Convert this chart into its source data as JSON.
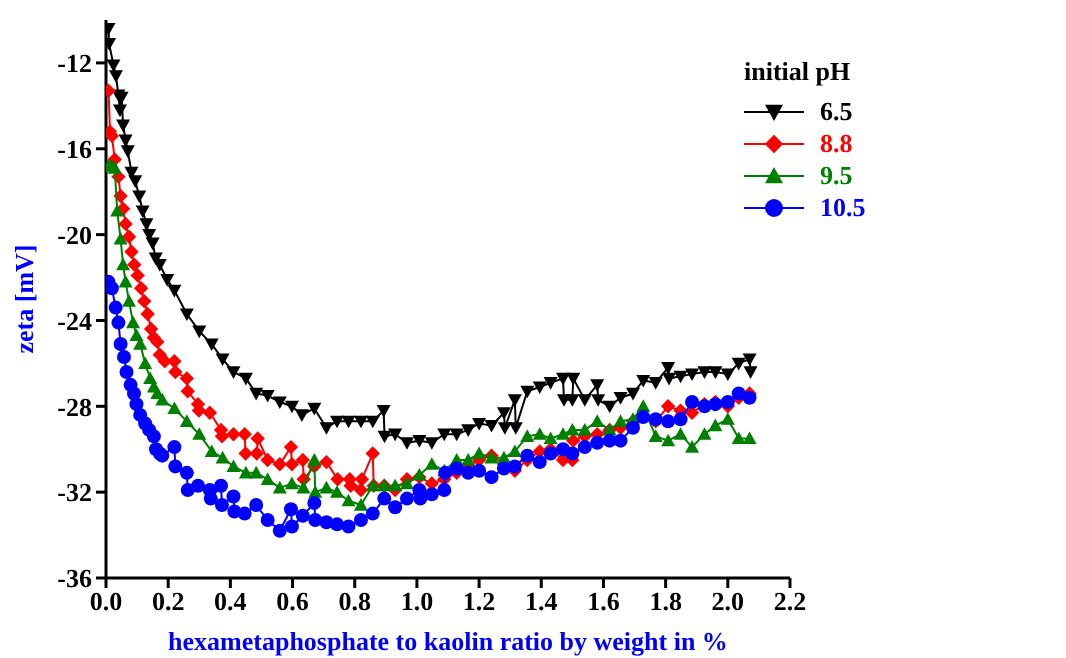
{
  "chart_data": {
    "type": "line",
    "xlabel": "hexametaphosphate to kaolin ratio by weight in %",
    "ylabel": "zeta [mV]",
    "legend_title": "initial pH",
    "legend": "top right",
    "grid": false,
    "xlim": [
      0,
      2.2
    ],
    "ylim": [
      -36,
      -10
    ],
    "xticks": [
      {
        "value": 0,
        "label": "0.0"
      },
      {
        "value": 0.2,
        "label": "0.2"
      },
      {
        "value": 0.4,
        "label": "0.4"
      },
      {
        "value": 0.6,
        "label": "0.6"
      },
      {
        "value": 0.8,
        "label": "0.8"
      },
      {
        "value": 1,
        "label": "1.0"
      },
      {
        "value": 1.2,
        "label": "1.2"
      },
      {
        "value": 1.4,
        "label": "1.4"
      },
      {
        "value": 1.6,
        "label": "1.6"
      },
      {
        "value": 1.8,
        "label": "1.8"
      },
      {
        "value": 2,
        "label": "2.0"
      },
      {
        "value": 2.2,
        "label": "2.2"
      }
    ],
    "yticks": [
      -36,
      -32,
      -28,
      -24,
      -20,
      -16,
      -12
    ],
    "series": [
      {
        "name": "6.5",
        "color": "#000000",
        "marker": "triangle-down",
        "x": [
          0.008,
          0.01,
          0.024,
          0.032,
          0.04,
          0.045,
          0.05,
          0.055,
          0.063,
          0.07,
          0.082,
          0.094,
          0.107,
          0.118,
          0.13,
          0.139,
          0.15,
          0.16,
          0.173,
          0.197,
          0.22,
          0.26,
          0.3,
          0.34,
          0.375,
          0.41,
          0.45,
          0.483,
          0.52,
          0.559,
          0.598,
          0.63,
          0.67,
          0.709,
          0.743,
          0.78,
          0.82,
          0.858,
          0.893,
          0.896,
          0.93,
          0.968,
          1.008,
          1.048,
          1.088,
          1.128,
          1.165,
          1.2,
          1.24,
          1.28,
          1.283,
          1.315,
          1.318,
          1.355,
          1.395,
          1.43,
          1.47,
          1.473,
          1.5,
          1.503,
          1.54,
          1.58,
          1.583,
          1.62,
          1.655,
          1.695,
          1.728,
          1.768,
          1.808,
          1.811,
          1.848,
          1.885,
          1.925,
          1.96,
          2.0,
          2.035,
          2.07,
          2.073
        ],
        "values": [
          -10.4,
          -11.1,
          -12.1,
          -12.6,
          -13.5,
          -14.2,
          -13.6,
          -14.9,
          -15.6,
          -16.1,
          -17.1,
          -17.5,
          -18.2,
          -18.9,
          -19.5,
          -20.0,
          -20.4,
          -21.1,
          -21.4,
          -22.1,
          -22.6,
          -23.7,
          -24.5,
          -25.1,
          -25.8,
          -26.4,
          -26.7,
          -27.4,
          -27.5,
          -27.8,
          -28.0,
          -28.4,
          -28.1,
          -29.0,
          -28.7,
          -28.7,
          -28.7,
          -28.7,
          -28.2,
          -29.4,
          -29.3,
          -29.7,
          -29.6,
          -29.7,
          -29.3,
          -29.3,
          -29.1,
          -28.8,
          -28.9,
          -28.3,
          -29.0,
          -27.7,
          -29.0,
          -27.3,
          -27.1,
          -26.9,
          -26.7,
          -27.7,
          -27.7,
          -26.7,
          -27.7,
          -27.0,
          -27.7,
          -28.0,
          -27.6,
          -27.4,
          -26.8,
          -26.9,
          -26.2,
          -26.7,
          -26.6,
          -26.5,
          -26.4,
          -26.4,
          -26.5,
          -26.0,
          -25.8,
          -26.4
        ]
      },
      {
        "name": "8.8",
        "color": "#ff0000",
        "marker": "diamond",
        "x": [
          0.008,
          0.013,
          0.019,
          0.028,
          0.04,
          0.047,
          0.055,
          0.063,
          0.074,
          0.082,
          0.091,
          0.102,
          0.113,
          0.123,
          0.134,
          0.145,
          0.154,
          0.165,
          0.173,
          0.189,
          0.22,
          0.223,
          0.26,
          0.263,
          0.296,
          0.299,
          0.334,
          0.37,
          0.373,
          0.41,
          0.446,
          0.449,
          0.485,
          0.488,
          0.52,
          0.559,
          0.595,
          0.598,
          0.633,
          0.636,
          0.67,
          0.709,
          0.745,
          0.784,
          0.787,
          0.82,
          0.823,
          0.858,
          0.861,
          0.895,
          0.93,
          0.968,
          1.008,
          1.048,
          1.088,
          1.128,
          1.165,
          1.2,
          1.24,
          1.28,
          1.315,
          1.355,
          1.395,
          1.43,
          1.47,
          1.5,
          1.503,
          1.54,
          1.58,
          1.62,
          1.655,
          1.695,
          1.728,
          1.768,
          1.808,
          1.848,
          1.885,
          1.925,
          1.96,
          2.0,
          2.035,
          2.07
        ],
        "values": [
          -13.3,
          -15.2,
          -15.4,
          -16.5,
          -17.3,
          -18.2,
          -18.8,
          -19.5,
          -20.1,
          -20.8,
          -21.4,
          -21.9,
          -22.5,
          -23.1,
          -23.7,
          -24.4,
          -24.8,
          -25.0,
          -25.6,
          -25.9,
          -25.9,
          -26.4,
          -26.7,
          -27.3,
          -27.9,
          -28.2,
          -28.3,
          -29.1,
          -29.4,
          -29.3,
          -29.3,
          -30.2,
          -30.2,
          -29.5,
          -30.5,
          -30.7,
          -29.9,
          -30.7,
          -30.5,
          -31.4,
          -30.8,
          -30.6,
          -31.4,
          -31.4,
          -31.7,
          -31.9,
          -31.4,
          -30.2,
          -31.7,
          -31.7,
          -31.9,
          -31.4,
          -31.3,
          -31.6,
          -31.4,
          -31.1,
          -30.8,
          -30.5,
          -30.3,
          -30.7,
          -31.0,
          -30.5,
          -30.1,
          -30.0,
          -30.5,
          -30.5,
          -29.6,
          -29.4,
          -29.3,
          -29.1,
          -29.0,
          -28.7,
          -28.5,
          -28.7,
          -28.0,
          -28.2,
          -28.3,
          -27.9,
          -27.8,
          -28.0,
          -27.6,
          -27.4
        ]
      },
      {
        "name": "9.5",
        "color": "#008000",
        "marker": "triangle",
        "x": [
          0.008,
          0.019,
          0.028,
          0.036,
          0.047,
          0.055,
          0.063,
          0.074,
          0.087,
          0.098,
          0.11,
          0.126,
          0.142,
          0.154,
          0.165,
          0.181,
          0.22,
          0.26,
          0.3,
          0.34,
          0.375,
          0.41,
          0.45,
          0.483,
          0.52,
          0.559,
          0.598,
          0.635,
          0.67,
          0.673,
          0.709,
          0.743,
          0.78,
          0.82,
          0.858,
          0.895,
          0.93,
          0.968,
          1.008,
          1.048,
          1.088,
          1.128,
          1.165,
          1.2,
          1.24,
          1.28,
          1.315,
          1.355,
          1.395,
          1.43,
          1.47,
          1.5,
          1.54,
          1.58,
          1.62,
          1.655,
          1.695,
          1.728,
          1.768,
          1.808,
          1.848,
          1.885,
          1.925,
          1.96,
          2.0,
          2.035,
          2.07
        ],
        "values": [
          -16.8,
          -16.8,
          -16.9,
          -18.9,
          -20.2,
          -21.4,
          -22.2,
          -23.1,
          -24.1,
          -24.7,
          -25.1,
          -26.0,
          -26.7,
          -27.1,
          -27.4,
          -27.7,
          -28.1,
          -28.7,
          -29.3,
          -30.1,
          -30.4,
          -30.8,
          -31.1,
          -31.1,
          -31.4,
          -31.8,
          -31.6,
          -31.8,
          -30.5,
          -32.0,
          -31.8,
          -32.0,
          -32.4,
          -32.6,
          -31.7,
          -31.7,
          -31.7,
          -31.6,
          -31.2,
          -30.7,
          -31.0,
          -30.5,
          -30.5,
          -30.2,
          -30.4,
          -30.4,
          -30.1,
          -29.4,
          -29.3,
          -29.5,
          -29.3,
          -29.1,
          -29.1,
          -28.7,
          -29.1,
          -28.7,
          -28.6,
          -28.0,
          -29.4,
          -29.6,
          -29.3,
          -29.9,
          -29.3,
          -28.9,
          -28.6,
          -29.5,
          -29.5
        ]
      },
      {
        "name": "10.5",
        "color": "#0000ff",
        "marker": "circle",
        "x": [
          0.008,
          0.019,
          0.031,
          0.04,
          0.047,
          0.058,
          0.066,
          0.079,
          0.09,
          0.098,
          0.11,
          0.126,
          0.139,
          0.154,
          0.161,
          0.173,
          0.181,
          0.22,
          0.223,
          0.26,
          0.263,
          0.296,
          0.334,
          0.337,
          0.37,
          0.373,
          0.41,
          0.413,
          0.446,
          0.483,
          0.52,
          0.559,
          0.595,
          0.598,
          0.633,
          0.67,
          0.673,
          0.709,
          0.743,
          0.78,
          0.82,
          0.858,
          0.895,
          0.93,
          0.968,
          1.008,
          1.011,
          1.048,
          1.088,
          1.091,
          1.128,
          1.165,
          1.2,
          1.24,
          1.28,
          1.315,
          1.355,
          1.395,
          1.43,
          1.47,
          1.5,
          1.54,
          1.58,
          1.62,
          1.655,
          1.695,
          1.728,
          1.768,
          1.808,
          1.848,
          1.885,
          1.925,
          1.96,
          2.0,
          2.035,
          2.07
        ],
        "values": [
          -22.2,
          -22.5,
          -23.4,
          -24.1,
          -25.1,
          -25.7,
          -26.4,
          -27.0,
          -27.4,
          -27.9,
          -28.4,
          -28.8,
          -29.1,
          -29.4,
          -30.0,
          -30.2,
          -30.3,
          -29.9,
          -30.8,
          -31.1,
          -31.9,
          -31.7,
          -31.9,
          -32.3,
          -31.7,
          -32.6,
          -32.2,
          -32.9,
          -33.0,
          -32.6,
          -33.3,
          -33.8,
          -32.8,
          -33.6,
          -33.1,
          -32.5,
          -33.3,
          -33.4,
          -33.5,
          -33.6,
          -33.3,
          -33.0,
          -32.3,
          -32.7,
          -32.3,
          -31.9,
          -32.3,
          -32.1,
          -31.9,
          -31.1,
          -30.9,
          -31.1,
          -31.0,
          -31.3,
          -30.9,
          -30.8,
          -30.3,
          -30.6,
          -30.2,
          -30.0,
          -30.2,
          -29.9,
          -29.7,
          -29.6,
          -29.6,
          -29.0,
          -28.5,
          -28.6,
          -28.7,
          -28.6,
          -27.8,
          -28.0,
          -27.9,
          -27.8,
          -27.4,
          -27.6
        ]
      }
    ]
  }
}
